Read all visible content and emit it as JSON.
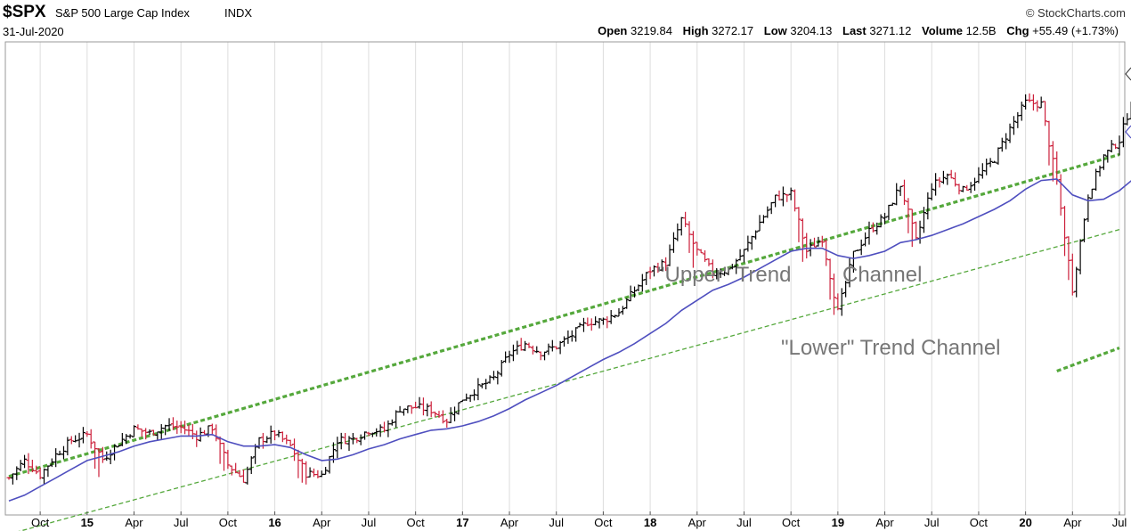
{
  "header": {
    "symbol": "$SPX",
    "name": "S&P 500 Large Cap Index",
    "exchange": "INDX",
    "date": "31-Jul-2020",
    "copyright": "© StockCharts.com",
    "open_label": "Open",
    "open": "3219.84",
    "high_label": "High",
    "high": "3272.17",
    "low_label": "Low",
    "low": "3204.13",
    "last_label": "Last",
    "last": "3271.12",
    "volume_label": "Volume",
    "volume": "12.5B",
    "chg_label": "Chg",
    "chg": "+55.49 (+1.73%)"
  },
  "colors": {
    "up_bar": "#000000",
    "down_bar": "#cc1f3a",
    "moving_average": "#4f4fbf",
    "trend_line": "#55a83c",
    "annotation": "#777777",
    "grid": "#dddddd"
  },
  "chart_data": {
    "type": "ohlc",
    "title": "$SPX S&P 500 Large Cap Index INDX",
    "x_tick_labels": [
      "Oct",
      "15",
      "Apr",
      "Jul",
      "Oct",
      "16",
      "Apr",
      "Jul",
      "Oct",
      "17",
      "Apr",
      "Jul",
      "Oct",
      "18",
      "Apr",
      "Jul",
      "Oct",
      "19",
      "Apr",
      "Jul",
      "Oct",
      "20",
      "Apr",
      "Jul"
    ],
    "x_range": [
      "2014-08",
      "2020-07"
    ],
    "grid": true,
    "annotations": [
      "\"Upper\" Trend",
      "Channel",
      "\"Lower\" Trend Channel"
    ],
    "closes_approx": [
      1930,
      1990,
      1940,
      2010,
      2060,
      2080,
      1995,
      2050,
      2100,
      2085,
      2110,
      2105,
      2075,
      2105,
      1975,
      1925,
      2060,
      2085,
      2040,
      1945,
      1940,
      2060,
      2065,
      2095,
      2095,
      2170,
      2175,
      2165,
      2130,
      2205,
      2240,
      2275,
      2360,
      2395,
      2365,
      2385,
      2425,
      2470,
      2475,
      2505,
      2580,
      2650,
      2675,
      2825,
      2715,
      2640,
      2650,
      2715,
      2815,
      2900,
      2915,
      2715,
      2760,
      2505,
      2705,
      2785,
      2835,
      2945,
      2750,
      2940,
      2980,
      2925,
      2975,
      3035,
      3140,
      3230,
      3225,
      2955,
      2585,
      2910,
      3045,
      3100,
      3270,
      3270
    ],
    "moving_average_approx": [
      1850,
      1870,
      1900,
      1930,
      1960,
      1990,
      2005,
      2020,
      2040,
      2055,
      2065,
      2075,
      2075,
      2080,
      2055,
      2040,
      2040,
      2045,
      2035,
      2010,
      1990,
      1995,
      2010,
      2030,
      2045,
      2065,
      2080,
      2095,
      2100,
      2110,
      2125,
      2145,
      2170,
      2200,
      2225,
      2250,
      2280,
      2310,
      2340,
      2365,
      2395,
      2430,
      2465,
      2510,
      2545,
      2580,
      2600,
      2625,
      2655,
      2685,
      2715,
      2725,
      2725,
      2700,
      2690,
      2700,
      2715,
      2745,
      2755,
      2770,
      2790,
      2810,
      2835,
      2860,
      2890,
      2930,
      2960,
      2965,
      2910,
      2890,
      2895,
      2925,
      2970,
      3010
    ],
    "series": [
      {
        "name": "$SPX",
        "kind": "ohlc"
      },
      {
        "name": "",
        "kind": "moving-average"
      }
    ],
    "trend_lines": [
      {
        "from": [
          "2014-08",
          1935
        ],
        "to": [
          "2020-07",
          3050
        ],
        "style": "dashed-thick"
      },
      {
        "from": [
          "2014-08",
          1735
        ],
        "to": [
          "2020-07",
          2790
        ],
        "style": "dashed-thin"
      },
      {
        "from": [
          "2020-03",
          2300
        ],
        "to": [
          "2020-07",
          2380
        ],
        "style": "dashed-thick"
      }
    ]
  }
}
